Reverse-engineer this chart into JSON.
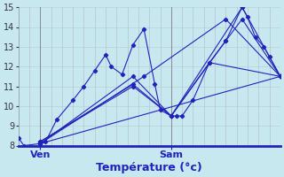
{
  "xlabel": "Température (°c)",
  "background_color": "#c8e8f0",
  "grid_color_v": "#b0b8c8",
  "grid_color_h": "#b8c8d0",
  "line_color": "#2222bb",
  "ylim": [
    8,
    15
  ],
  "xlim": [
    0,
    24
  ],
  "yticks": [
    8,
    9,
    10,
    11,
    12,
    13,
    14,
    15
  ],
  "xtick_labels_pos": [
    2,
    14
  ],
  "xtick_labels": [
    "Ven",
    "Sam"
  ],
  "ven_x": 2,
  "sam_x": 14,
  "lines": [
    {
      "x": [
        0,
        0.5,
        2,
        2.5,
        3.5,
        5,
        6,
        7,
        8,
        8.5,
        9.5,
        10.5,
        11.5,
        12.5,
        13,
        14,
        14.5,
        15,
        16,
        17.5,
        19,
        20.5,
        21,
        21.7,
        22.5,
        23,
        24
      ],
      "y": [
        8.4,
        8.0,
        8.1,
        8.2,
        9.3,
        10.3,
        11.0,
        11.8,
        12.6,
        12.0,
        11.6,
        13.1,
        13.9,
        11.1,
        9.8,
        9.5,
        9.5,
        9.5,
        10.3,
        12.2,
        13.3,
        15.0,
        14.5,
        13.5,
        13.0,
        12.5,
        11.5
      ]
    },
    {
      "x": [
        2,
        24
      ],
      "y": [
        8.1,
        11.5
      ]
    },
    {
      "x": [
        2,
        10.5,
        14,
        17.5,
        24
      ],
      "y": [
        8.2,
        11.0,
        9.5,
        12.2,
        11.5
      ]
    },
    {
      "x": [
        2,
        10.5,
        14,
        19,
        20.5,
        24
      ],
      "y": [
        8.2,
        11.1,
        9.5,
        13.3,
        14.4,
        11.5
      ]
    },
    {
      "x": [
        2,
        10.5,
        14,
        20.5,
        24
      ],
      "y": [
        8.1,
        11.5,
        9.5,
        15.0,
        11.5
      ]
    },
    {
      "x": [
        2,
        11.5,
        19,
        24
      ],
      "y": [
        8.1,
        11.5,
        14.4,
        11.5
      ]
    }
  ]
}
